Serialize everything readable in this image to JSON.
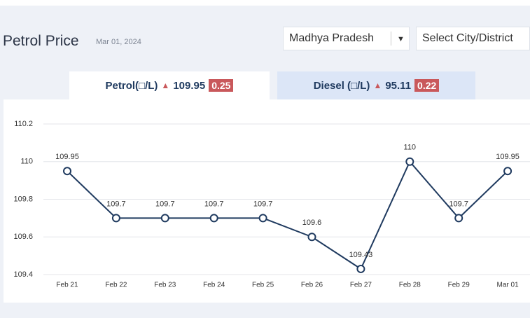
{
  "header": {
    "title": "Petrol Price",
    "date": "Mar 01, 2024",
    "state": "Madhya Pradesh",
    "city": "Select City/District"
  },
  "tabs": [
    {
      "label": "Petrol(□/L)",
      "price": 109.95,
      "change": 0.25
    },
    {
      "label": "Diesel (□/L)",
      "price": 95.11,
      "change": 0.22
    }
  ],
  "chart_data": {
    "type": "line",
    "categories": [
      "Feb 21",
      "Feb 22",
      "Feb 23",
      "Feb 24",
      "Feb 25",
      "Feb 26",
      "Feb 27",
      "Feb 28",
      "Feb 29",
      "Mar 01"
    ],
    "values": [
      109.95,
      109.7,
      109.7,
      109.7,
      109.7,
      109.6,
      109.43,
      110,
      109.7,
      109.95
    ],
    "color": "#1f3a5f",
    "ylim": [
      109.4,
      110.2
    ],
    "yticks": [
      109.4,
      109.6,
      109.8,
      110,
      110.2
    ],
    "grid": true
  }
}
